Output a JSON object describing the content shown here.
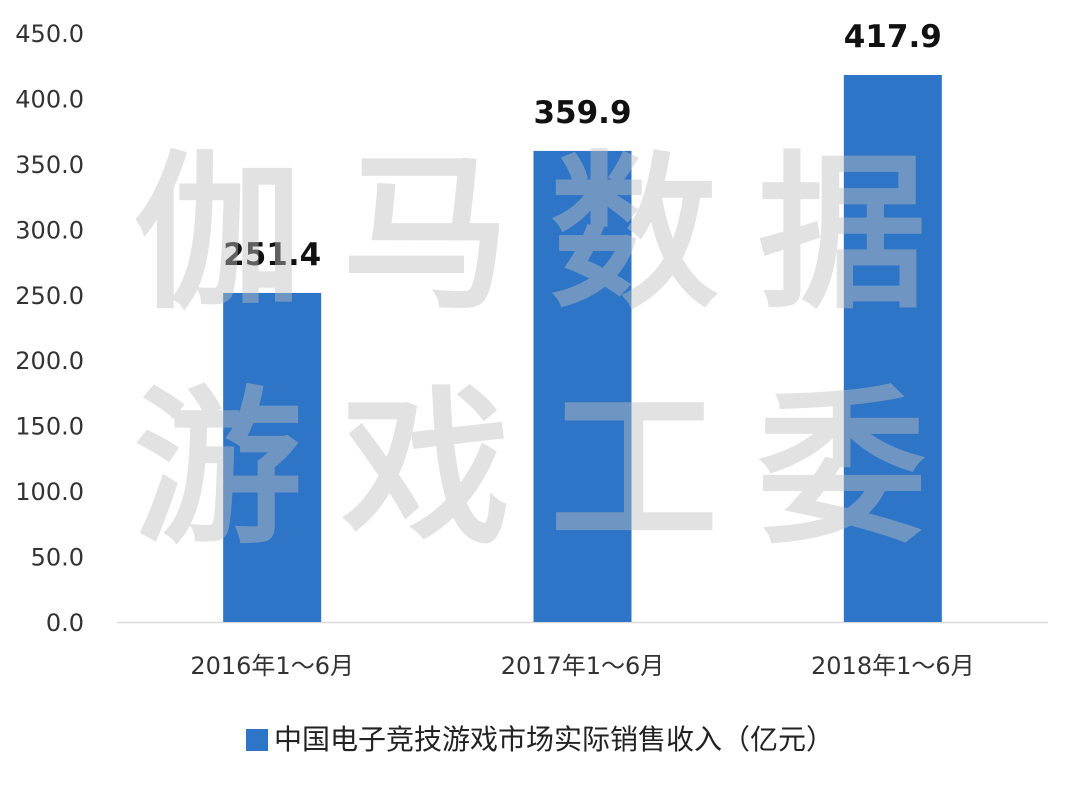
{
  "colors": {
    "bar": "#2e75c7",
    "axis_line": "#d9d9d9",
    "tick_text": "#333333",
    "label_text": "#111111",
    "watermark": "#bfbfbf"
  },
  "watermark": {
    "line1": "伽马数据",
    "line2": "游戏工委"
  },
  "chart_data": {
    "type": "bar",
    "categories": [
      "2016年1～6月",
      "2017年1～6月",
      "2018年1～6月"
    ],
    "series": [
      {
        "name": "中国电子竞技游戏市场实际销售收入（亿元）",
        "values": [
          251.4,
          359.9,
          417.9
        ]
      }
    ],
    "data_labels": [
      "251.4",
      "359.9",
      "417.9"
    ],
    "ylim": [
      0,
      450
    ],
    "yticks": [
      "0.0",
      "50.0",
      "100.0",
      "150.0",
      "200.0",
      "250.0",
      "300.0",
      "350.0",
      "400.0",
      "450.0"
    ],
    "grid": false,
    "legend": "bottom"
  }
}
